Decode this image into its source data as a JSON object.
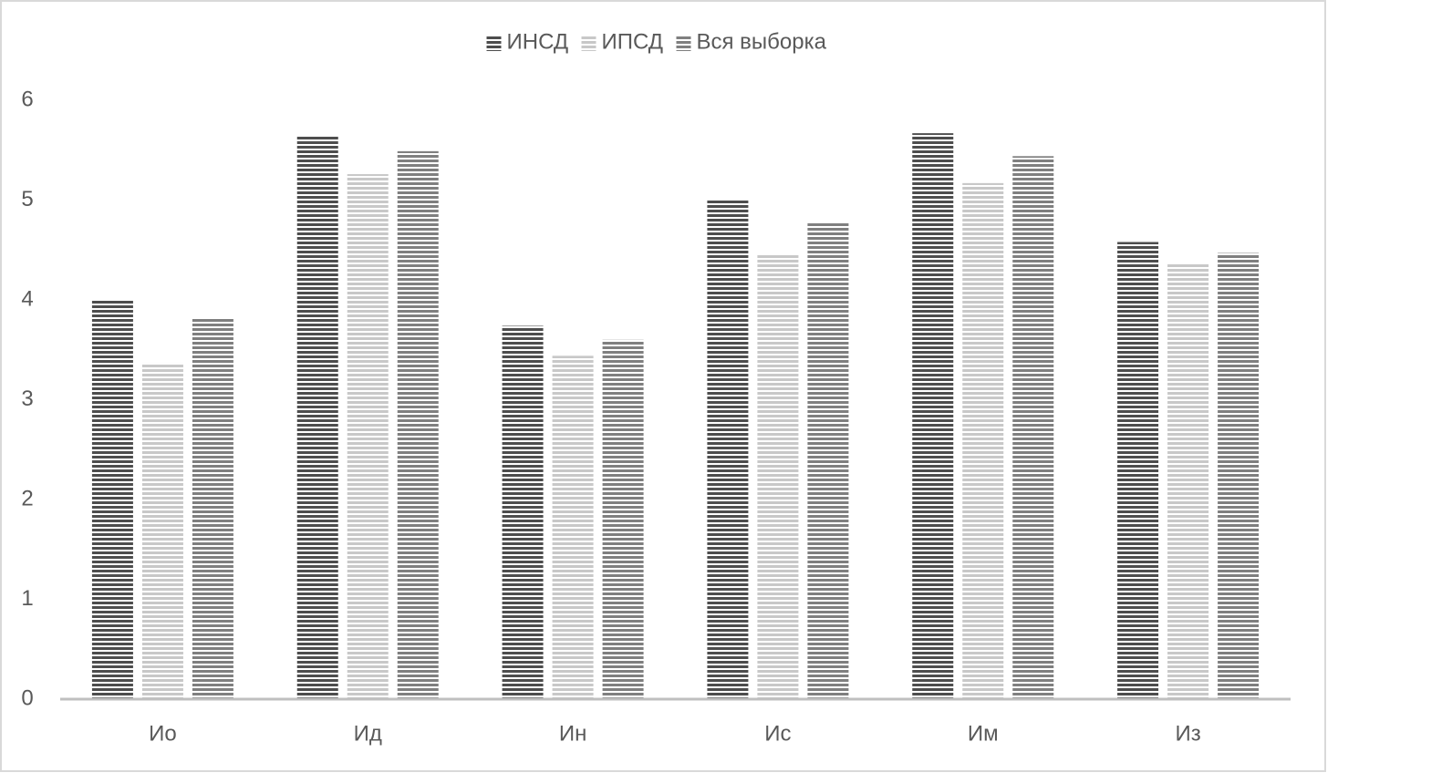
{
  "chart_data": {
    "type": "bar",
    "categories": [
      "Ио",
      "Ид",
      "Ин",
      "Ис",
      "Им",
      "Из"
    ],
    "series": [
      {
        "name": "ИНСД",
        "color": "#4d4d4d",
        "values": [
          4.0,
          5.64,
          3.74,
          5.0,
          5.67,
          4.58
        ]
      },
      {
        "name": "ИПСД",
        "color": "#c8c8c8",
        "values": [
          3.37,
          5.26,
          3.44,
          4.45,
          5.17,
          4.36
        ]
      },
      {
        "name": "Вся выборка",
        "color": "#7f7f7f",
        "values": [
          3.81,
          5.49,
          3.6,
          4.78,
          5.44,
          4.47
        ]
      }
    ],
    "ylim": [
      0,
      6
    ],
    "yticks": [
      0,
      1,
      2,
      3,
      4,
      5,
      6
    ],
    "grid": false,
    "legend": "top"
  }
}
